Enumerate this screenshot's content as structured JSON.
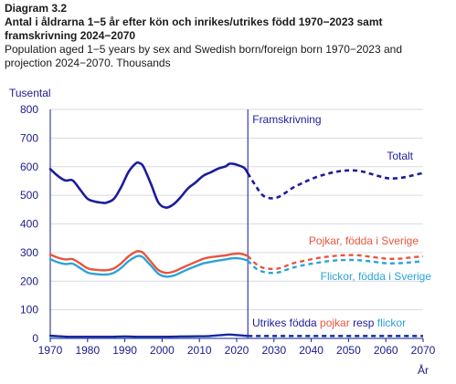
{
  "header": {
    "label": "Diagram 3.2",
    "title_sv": "Antal i åldrarna 1−5 år efter kön och inrikes/utrikes född 1970−2023 samt framskrivning 2024−2070",
    "title_en": "Population aged 1−5 years by sex and Swedish born/foreign born 1970−2023 and projection 2024−2070. Thousands"
  },
  "chart_data": {
    "type": "line",
    "ylabel": "Tusental",
    "xlabel": "År",
    "xlim": [
      1970,
      2070
    ],
    "ylim": [
      0,
      800
    ],
    "x_ticks": [
      1970,
      1980,
      1990,
      2000,
      2010,
      2020,
      2030,
      2040,
      2050,
      2060,
      2070
    ],
    "y_ticks": [
      0,
      100,
      200,
      300,
      400,
      500,
      600,
      700,
      800
    ],
    "grid": "horizontal",
    "projection_start": 2023,
    "projection_label": "Framskrivning",
    "colors": {
      "total": "#1c1c9c",
      "boys": "#e8553e",
      "girls": "#2aa3d8",
      "axis": "#1a1a8c",
      "divider": "#3a3ab0",
      "grid": "#d9d9e6"
    },
    "series": [
      {
        "key": "total",
        "name": "Totalt",
        "historical": [
          [
            1970,
            592
          ],
          [
            1972,
            568
          ],
          [
            1974,
            552
          ],
          [
            1976,
            552
          ],
          [
            1978,
            520
          ],
          [
            1980,
            488
          ],
          [
            1982,
            478
          ],
          [
            1984,
            474
          ],
          [
            1985,
            474
          ],
          [
            1987,
            487
          ],
          [
            1989,
            528
          ],
          [
            1991,
            582
          ],
          [
            1993,
            612
          ],
          [
            1994,
            612
          ],
          [
            1995,
            600
          ],
          [
            1997,
            540
          ],
          [
            1999,
            475
          ],
          [
            2001,
            457
          ],
          [
            2003,
            468
          ],
          [
            2005,
            494
          ],
          [
            2007,
            525
          ],
          [
            2009,
            545
          ],
          [
            2011,
            568
          ],
          [
            2013,
            580
          ],
          [
            2015,
            593
          ],
          [
            2017,
            601
          ],
          [
            2018,
            610
          ],
          [
            2019,
            610
          ],
          [
            2020,
            607
          ],
          [
            2022,
            596
          ],
          [
            2023,
            577
          ]
        ],
        "projection": [
          [
            2023,
            577
          ],
          [
            2025,
            535
          ],
          [
            2027,
            500
          ],
          [
            2029,
            490
          ],
          [
            2031,
            493
          ],
          [
            2033,
            508
          ],
          [
            2035,
            526
          ],
          [
            2038,
            545
          ],
          [
            2041,
            562
          ],
          [
            2044,
            574
          ],
          [
            2047,
            583
          ],
          [
            2050,
            587
          ],
          [
            2053,
            585
          ],
          [
            2056,
            575
          ],
          [
            2059,
            564
          ],
          [
            2061,
            559
          ],
          [
            2064,
            561
          ],
          [
            2067,
            569
          ],
          [
            2070,
            578
          ]
        ]
      },
      {
        "key": "boys",
        "name": "Pojkar, födda i Sverige",
        "historical": [
          [
            1970,
            293
          ],
          [
            1972,
            282
          ],
          [
            1974,
            276
          ],
          [
            1976,
            277
          ],
          [
            1978,
            262
          ],
          [
            1980,
            245
          ],
          [
            1982,
            240
          ],
          [
            1985,
            238
          ],
          [
            1987,
            244
          ],
          [
            1989,
            262
          ],
          [
            1991,
            287
          ],
          [
            1993,
            303
          ],
          [
            1994,
            304
          ],
          [
            1995,
            298
          ],
          [
            1997,
            268
          ],
          [
            1999,
            239
          ],
          [
            2001,
            229
          ],
          [
            2003,
            233
          ],
          [
            2005,
            244
          ],
          [
            2007,
            256
          ],
          [
            2009,
            267
          ],
          [
            2011,
            278
          ],
          [
            2013,
            284
          ],
          [
            2015,
            287
          ],
          [
            2017,
            290
          ],
          [
            2019,
            295
          ],
          [
            2021,
            296
          ],
          [
            2023,
            288
          ]
        ],
        "projection": [
          [
            2023,
            288
          ],
          [
            2025,
            262
          ],
          [
            2027,
            247
          ],
          [
            2029,
            243
          ],
          [
            2031,
            244
          ],
          [
            2033,
            252
          ],
          [
            2035,
            262
          ],
          [
            2038,
            271
          ],
          [
            2041,
            279
          ],
          [
            2044,
            285
          ],
          [
            2047,
            289
          ],
          [
            2050,
            291
          ],
          [
            2053,
            290
          ],
          [
            2056,
            285
          ],
          [
            2059,
            280
          ],
          [
            2061,
            278
          ],
          [
            2064,
            279
          ],
          [
            2067,
            283
          ],
          [
            2070,
            287
          ]
        ]
      },
      {
        "key": "girls",
        "name": "Flickor, födda i Sverige",
        "historical": [
          [
            1970,
            277
          ],
          [
            1972,
            266
          ],
          [
            1974,
            260
          ],
          [
            1976,
            261
          ],
          [
            1978,
            246
          ],
          [
            1980,
            230
          ],
          [
            1982,
            225
          ],
          [
            1985,
            223
          ],
          [
            1987,
            229
          ],
          [
            1989,
            246
          ],
          [
            1991,
            270
          ],
          [
            1993,
            286
          ],
          [
            1994,
            288
          ],
          [
            1995,
            282
          ],
          [
            1997,
            254
          ],
          [
            1999,
            226
          ],
          [
            2001,
            216
          ],
          [
            2003,
            219
          ],
          [
            2005,
            230
          ],
          [
            2007,
            242
          ],
          [
            2009,
            252
          ],
          [
            2011,
            262
          ],
          [
            2013,
            267
          ],
          [
            2015,
            272
          ],
          [
            2017,
            276
          ],
          [
            2019,
            280
          ],
          [
            2021,
            279
          ],
          [
            2023,
            272
          ]
        ],
        "projection": [
          [
            2023,
            272
          ],
          [
            2025,
            246
          ],
          [
            2027,
            233
          ],
          [
            2029,
            229
          ],
          [
            2031,
            230
          ],
          [
            2033,
            238
          ],
          [
            2035,
            247
          ],
          [
            2038,
            256
          ],
          [
            2041,
            263
          ],
          [
            2044,
            269
          ],
          [
            2047,
            273
          ],
          [
            2050,
            274
          ],
          [
            2053,
            273
          ],
          [
            2056,
            269
          ],
          [
            2059,
            264
          ],
          [
            2061,
            262
          ],
          [
            2064,
            263
          ],
          [
            2067,
            266
          ],
          [
            2070,
            270
          ]
        ]
      },
      {
        "key": "foreign_girls",
        "name": "flickor",
        "historical": [
          [
            1970,
            8
          ],
          [
            1975,
            5
          ],
          [
            1980,
            5
          ],
          [
            1985,
            5
          ],
          [
            1990,
            6
          ],
          [
            1995,
            5
          ],
          [
            2000,
            5
          ],
          [
            2005,
            6
          ],
          [
            2010,
            7
          ],
          [
            2013,
            8
          ],
          [
            2016,
            11
          ],
          [
            2018,
            13
          ],
          [
            2020,
            11
          ],
          [
            2023,
            8
          ]
        ],
        "projection": [
          [
            2023,
            8
          ],
          [
            2030,
            8
          ],
          [
            2040,
            8
          ],
          [
            2050,
            8
          ],
          [
            2060,
            8
          ],
          [
            2070,
            8
          ]
        ]
      },
      {
        "key": "foreign_boys",
        "name": "pojkar",
        "historical": [
          [
            1970,
            10
          ],
          [
            1975,
            6
          ],
          [
            1980,
            6
          ],
          [
            1985,
            6
          ],
          [
            1990,
            7
          ],
          [
            1995,
            6
          ],
          [
            2000,
            6
          ],
          [
            2005,
            7
          ],
          [
            2010,
            8
          ],
          [
            2013,
            9
          ],
          [
            2016,
            12
          ],
          [
            2018,
            14
          ],
          [
            2020,
            12
          ],
          [
            2023,
            9
          ]
        ],
        "projection": [
          [
            2023,
            9
          ],
          [
            2030,
            9
          ],
          [
            2040,
            9
          ],
          [
            2050,
            9
          ],
          [
            2060,
            9
          ],
          [
            2070,
            9
          ]
        ]
      }
    ],
    "annotations": {
      "total": "Totalt",
      "boys": "Pojkar, födda i Sverige",
      "girls": "Flickor, födda i Sverige",
      "foreign_prefix": "Utrikes födda ",
      "foreign_boys": "pojkar",
      "foreign_mid": " resp ",
      "foreign_girls": "flickor"
    }
  }
}
